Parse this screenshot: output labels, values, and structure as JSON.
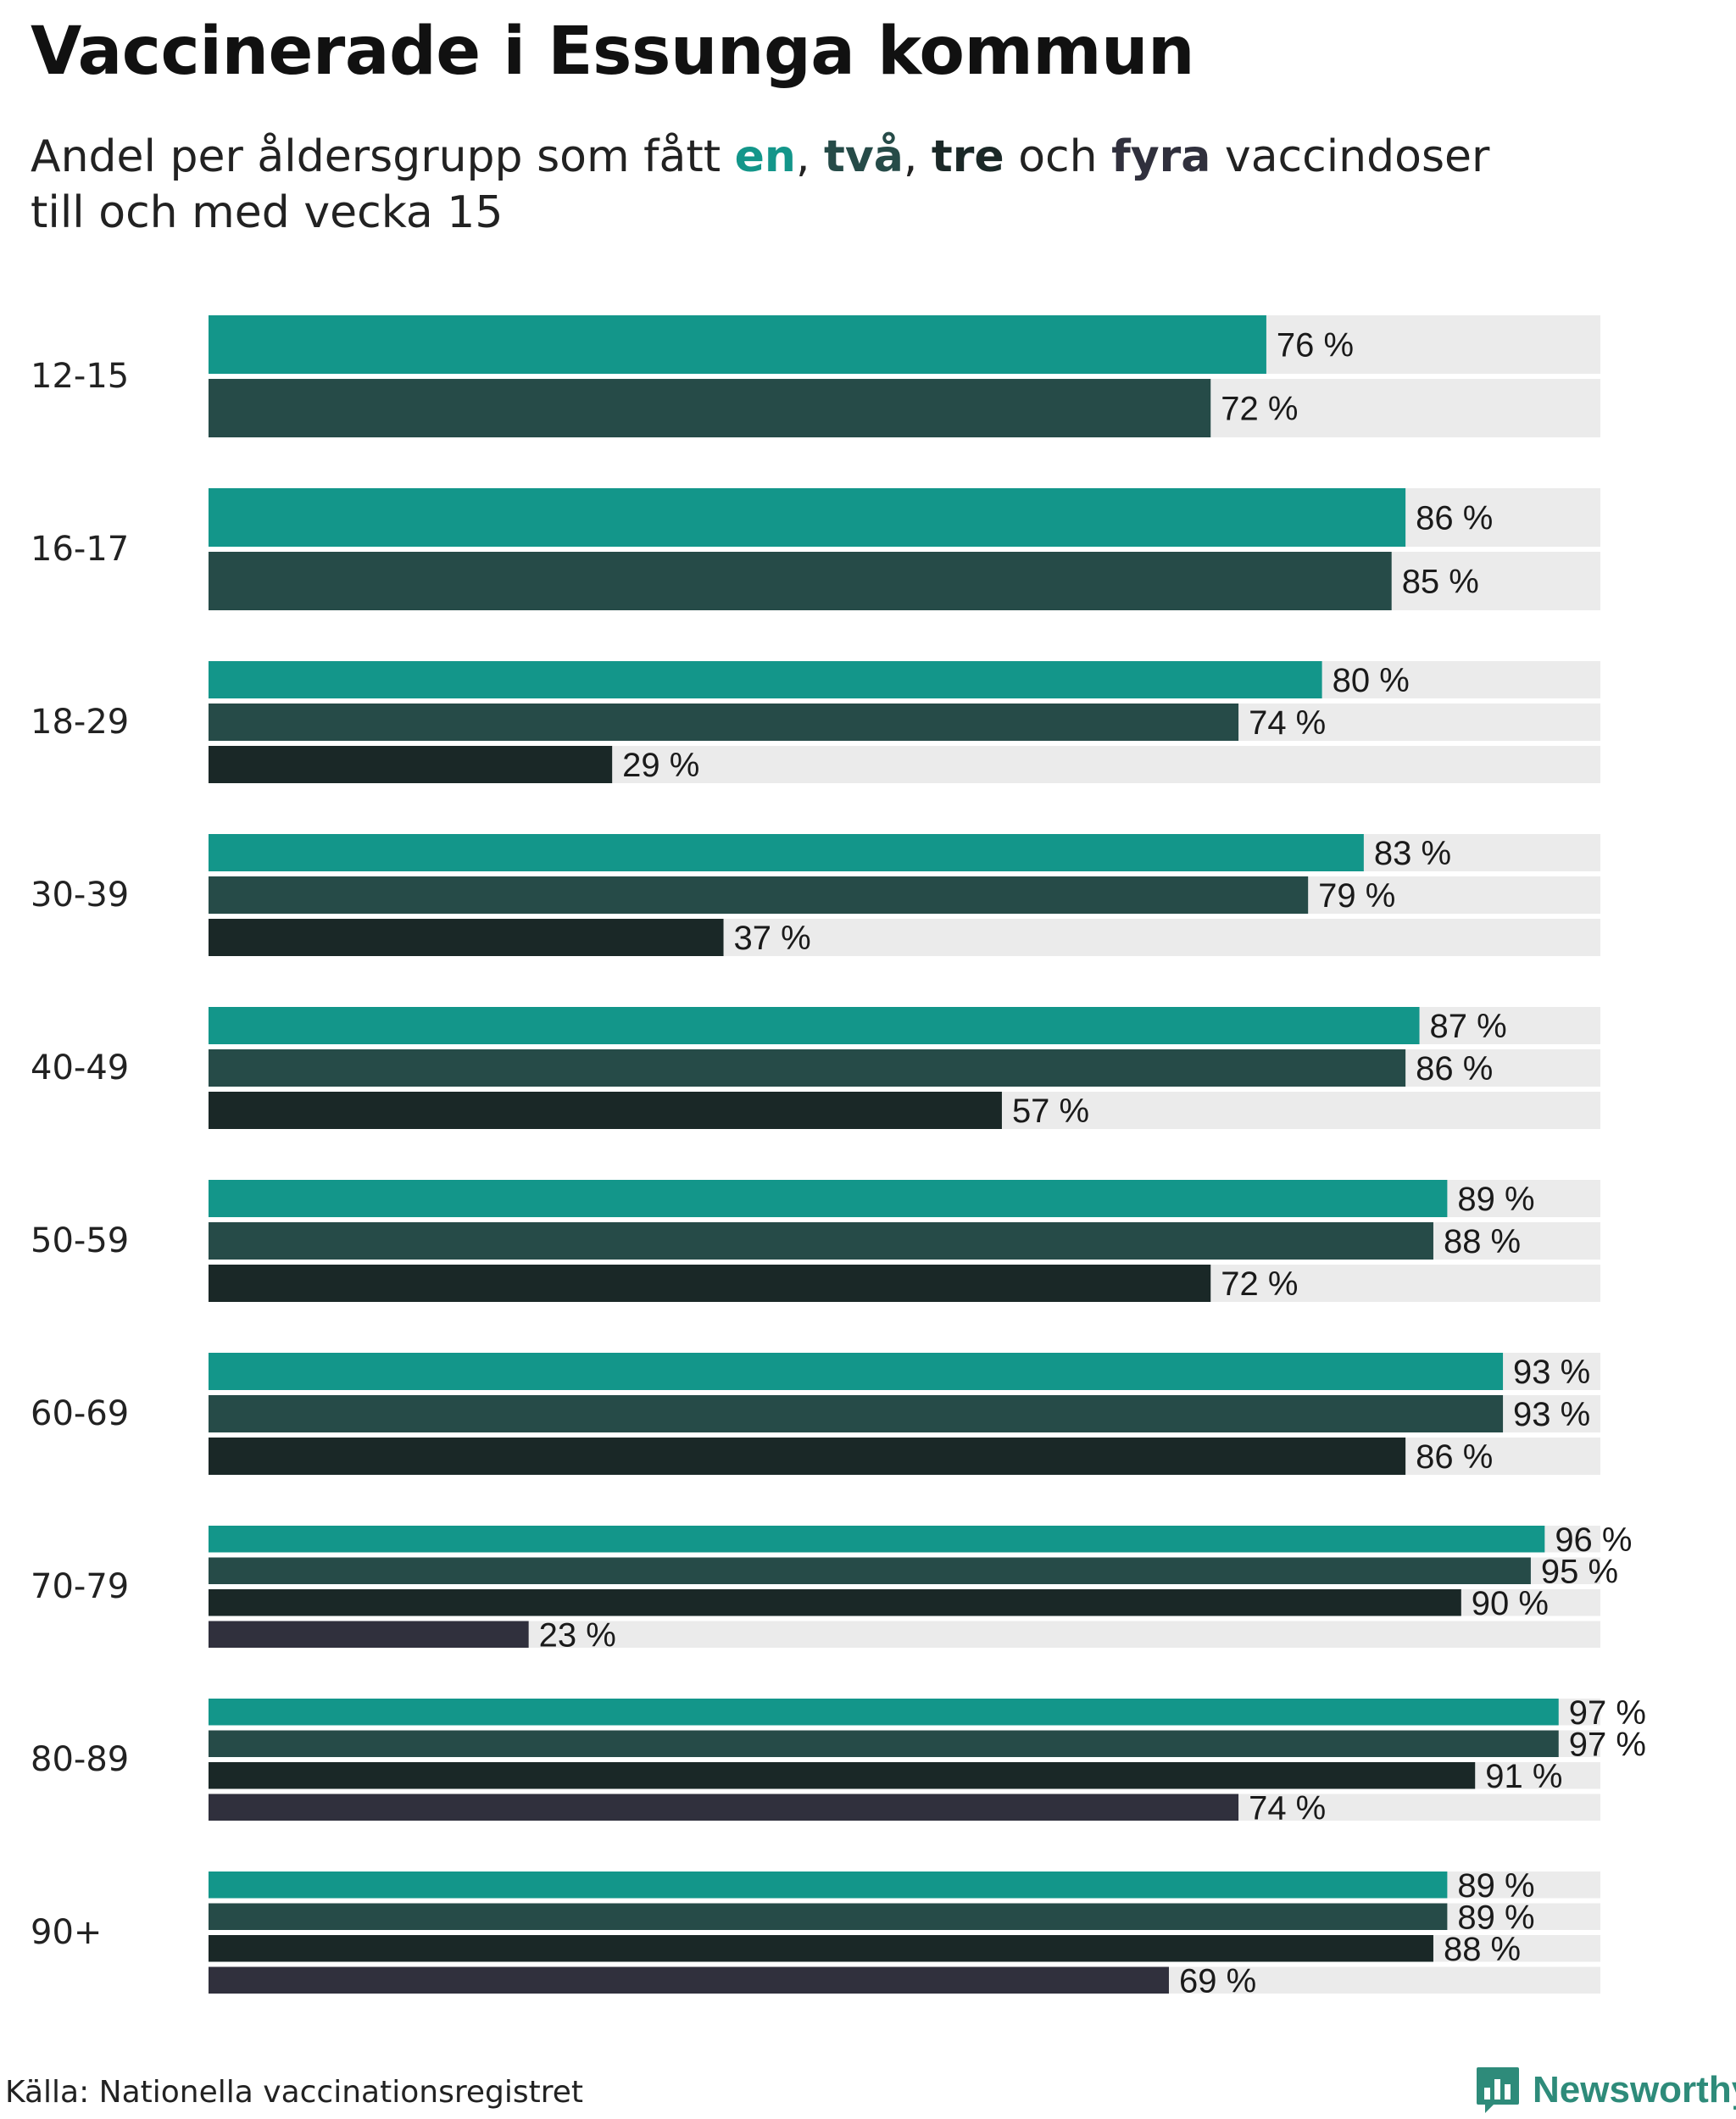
{
  "title": "Vaccinerade i Essunga kommun",
  "subtitle": {
    "before": "Andel per åldersgrupp som fått ",
    "dose1": "en",
    "sep1": ", ",
    "dose2": "två",
    "sep2": ", ",
    "dose3": "tre",
    "mid": " och ",
    "dose4": "fyra",
    "after": " vaccindoser",
    "line2": "till och med vecka 15"
  },
  "colors": {
    "dose1": "#13968a",
    "dose2": "#264b48",
    "dose3": "#1a2827",
    "dose4": "#30303d",
    "track": "#ebebeb",
    "brand": "#2e8b7a"
  },
  "chart_data": {
    "type": "bar",
    "orientation": "horizontal",
    "xlim": [
      0,
      100
    ],
    "value_suffix": " %",
    "series": [
      {
        "name": "en",
        "values": [
          76,
          86,
          80,
          83,
          87,
          89,
          93,
          96,
          97,
          89
        ]
      },
      {
        "name": "två",
        "values": [
          72,
          85,
          74,
          79,
          86,
          88,
          93,
          95,
          97,
          89
        ]
      },
      {
        "name": "tre",
        "values": [
          null,
          null,
          29,
          37,
          57,
          72,
          86,
          90,
          91,
          88
        ]
      },
      {
        "name": "fyra",
        "values": [
          null,
          null,
          null,
          null,
          null,
          null,
          null,
          23,
          74,
          69
        ]
      }
    ],
    "categories": [
      "12-15",
      "16-17",
      "18-29",
      "30-39",
      "40-49",
      "50-59",
      "60-69",
      "70-79",
      "80-89",
      "90+"
    ]
  },
  "source": "Källa: Nationella vaccinationsregistret",
  "logo": {
    "text": "Newsworthy",
    "icon": "newsworthy-bar-chart-icon"
  }
}
